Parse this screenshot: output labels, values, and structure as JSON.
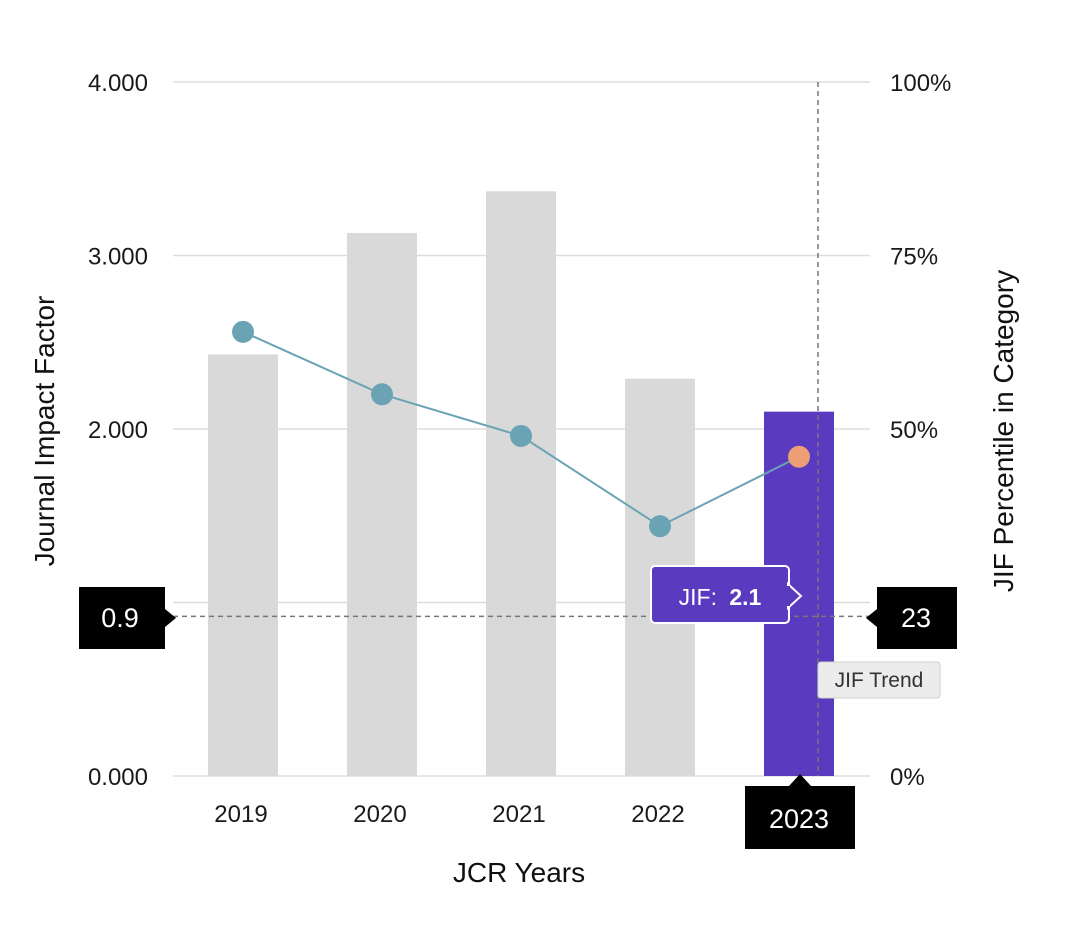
{
  "chart_data": {
    "type": "bar",
    "categories": [
      "2019",
      "2020",
      "2021",
      "2022",
      "2023"
    ],
    "series": [
      {
        "values": [
          2.43,
          3.13,
          3.37,
          2.29,
          2.1
        ],
        "axis": "left",
        "type": "bar"
      },
      {
        "values": [
          64,
          55,
          49,
          36,
          46
        ],
        "axis": "right",
        "type": "line"
      }
    ],
    "xlabel": "JCR Years",
    "ylabel": "Journal Impact Factor",
    "y2label": "JIF Percentile in Category",
    "ylim": [
      0,
      4
    ],
    "y2lim": [
      0,
      100
    ],
    "y_ticks": [
      "0.000",
      "2.000",
      "3.000",
      "4.000"
    ],
    "y2_ticks": [
      "0%",
      "50%",
      "75%",
      "100%"
    ],
    "grid": true,
    "highlight_category": "2023",
    "colors": {
      "bar": "#d9d9d9",
      "bar_highlight": "#5a3bbf",
      "line": "#6aa3b4",
      "point": "#6aa3b4",
      "point_highlight": "#ec9f74",
      "badge": "#000000"
    },
    "reference_line": {
      "left_label": "0.9",
      "right_label": "23",
      "left_value": 0.9,
      "right_value": 23
    },
    "tooltip": {
      "prefix": "JIF:",
      "value": "2.1"
    },
    "trend_label": "JIF Trend"
  }
}
